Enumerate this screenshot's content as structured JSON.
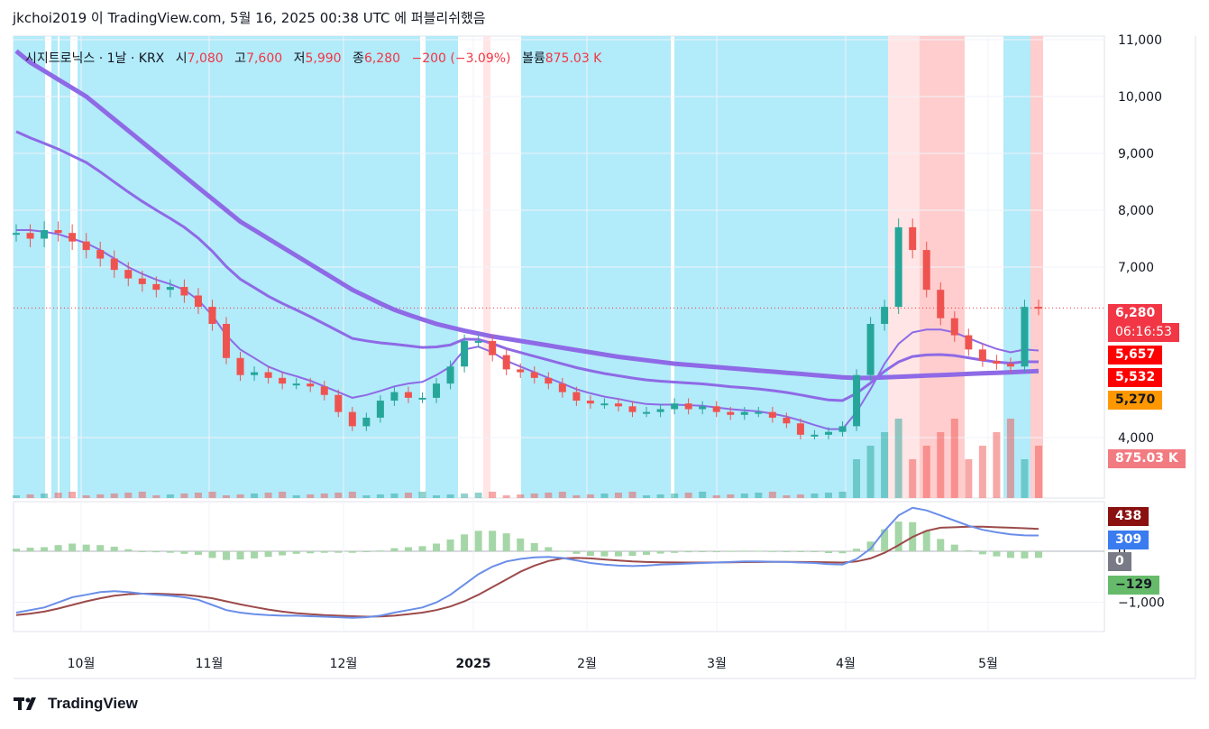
{
  "header": {
    "text": "jkchoi2019 이 TradingView.com, 5월 16, 2025 00:38 UTC 에 퍼블리쉬했음"
  },
  "legend": {
    "symbol": "시지트로닉스 · 1날 · KRX",
    "open_label": "시",
    "open": "7,080",
    "high_label": "고",
    "high": "7,600",
    "low_label": "저",
    "low": "5,990",
    "close_label": "종",
    "close": "6,280",
    "change": "−200 (−3.09%)",
    "volume_label": "볼륨",
    "volume": "875.03 K"
  },
  "price_badges": {
    "last_price": "6,280",
    "countdown": "06:16:53",
    "ma_red_1": "5,657",
    "ma_red_2": "5,532",
    "ma_orange": "5,270",
    "volume": "875.03 K"
  },
  "macd_badges": {
    "signal": "438",
    "macd": "309",
    "zero": "0",
    "histogram": "−129"
  },
  "footer": {
    "brand": "TradingView"
  },
  "colors": {
    "up": "#26a69a",
    "down": "#ef5350",
    "ma_purple": "#8e6ae6",
    "cyan_bg": "#b2ebf9",
    "pink_bg": "#ffe5e5",
    "red_bg": "#ffcdcd",
    "macd_line": "#6a8ee8",
    "signal_line": "#9c4a4a",
    "hist": "#a5d6a7"
  },
  "chart_data": {
    "type": "line",
    "title": "시지트로닉스 · 1날 · KRX",
    "x_ticks": [
      "10월",
      "11월",
      "12월",
      "2025",
      "2월",
      "3월",
      "4월",
      "5월"
    ],
    "y_ticks": [
      "4,000",
      "7,000",
      "8,000",
      "9,000",
      "10,000",
      "11,000"
    ],
    "macd_y_ticks": [
      "0",
      "−1,000"
    ],
    "ylim": [
      3000,
      11000
    ],
    "scale": "linear",
    "series": [
      {
        "kind": "close",
        "values": [
          7600,
          7500,
          7650,
          7600,
          7450,
          7300,
          7150,
          6950,
          6800,
          6700,
          6600,
          6650,
          6500,
          6300,
          6000,
          5400,
          5100,
          5150,
          5050,
          4950,
          4950,
          4900,
          4750,
          4450,
          4200,
          4350,
          4650,
          4800,
          4700,
          4700,
          4950,
          5250,
          5700,
          5700,
          5450,
          5200,
          5150,
          5050,
          4950,
          4800,
          4650,
          4600,
          4600,
          4550,
          4450,
          4450,
          4500,
          4600,
          4500,
          4550,
          4450,
          4400,
          4450,
          4450,
          4350,
          4250,
          4050,
          4050,
          4100,
          4200,
          5100,
          6000,
          6300,
          7700,
          7300,
          6600,
          6100,
          5800,
          5550,
          5350,
          5300,
          5250,
          6300,
          6280
        ]
      },
      {
        "kind": "ma_short",
        "values": [
          7650,
          7650,
          7620,
          7580,
          7500,
          7420,
          7300,
          7150,
          7000,
          6880,
          6780,
          6700,
          6600,
          6420,
          6150,
          5800,
          5550,
          5400,
          5250,
          5150,
          5080,
          5000,
          4900,
          4800,
          4700,
          4750,
          4820,
          4900,
          4950,
          4980,
          5100,
          5250,
          5550,
          5600,
          5500,
          5350,
          5250,
          5150,
          5050,
          4950,
          4850,
          4780,
          4720,
          4680,
          4630,
          4590,
          4580,
          4580,
          4570,
          4560,
          4530,
          4500,
          4480,
          4460,
          4420,
          4370,
          4300,
          4220,
          4150,
          4150,
          4450,
          4850,
          5300,
          5650,
          5850,
          5900,
          5900,
          5850,
          5750,
          5650,
          5560,
          5500,
          5550,
          5532
        ]
      },
      {
        "kind": "ma_long",
        "values": [
          10800,
          10600,
          10450,
          10300,
          10150,
          10000,
          9800,
          9600,
          9400,
          9200,
          9000,
          8800,
          8600,
          8400,
          8200,
          8000,
          7800,
          7650,
          7500,
          7350,
          7200,
          7050,
          6900,
          6750,
          6600,
          6480,
          6360,
          6250,
          6160,
          6080,
          6000,
          5940,
          5880,
          5830,
          5780,
          5740,
          5700,
          5660,
          5620,
          5580,
          5540,
          5500,
          5460,
          5420,
          5390,
          5360,
          5330,
          5300,
          5280,
          5260,
          5240,
          5220,
          5200,
          5180,
          5160,
          5140,
          5120,
          5100,
          5080,
          5060,
          5050,
          5050,
          5060,
          5070,
          5080,
          5090,
          5100,
          5110,
          5120,
          5130,
          5140,
          5150,
          5160,
          5170
        ]
      },
      {
        "kind": "macd_line",
        "values": [
          -1200,
          -1150,
          -1100,
          -1000,
          -900,
          -850,
          -800,
          -780,
          -800,
          -830,
          -850,
          -870,
          -900,
          -950,
          -1050,
          -1150,
          -1200,
          -1230,
          -1250,
          -1260,
          -1260,
          -1270,
          -1280,
          -1290,
          -1300,
          -1290,
          -1260,
          -1200,
          -1150,
          -1100,
          -1000,
          -850,
          -650,
          -450,
          -300,
          -200,
          -150,
          -120,
          -110,
          -130,
          -180,
          -230,
          -260,
          -280,
          -290,
          -280,
          -260,
          -250,
          -240,
          -230,
          -220,
          -210,
          -200,
          -200,
          -205,
          -210,
          -220,
          -230,
          -250,
          -260,
          -150,
          50,
          400,
          700,
          850,
          800,
          700,
          600,
          500,
          420,
          370,
          330,
          310,
          309
        ]
      },
      {
        "kind": "signal_line",
        "values": [
          -1250,
          -1220,
          -1180,
          -1120,
          -1050,
          -980,
          -920,
          -870,
          -840,
          -830,
          -830,
          -840,
          -850,
          -880,
          -920,
          -980,
          -1040,
          -1090,
          -1140,
          -1180,
          -1210,
          -1230,
          -1250,
          -1260,
          -1270,
          -1280,
          -1275,
          -1260,
          -1230,
          -1200,
          -1150,
          -1080,
          -980,
          -850,
          -700,
          -550,
          -400,
          -280,
          -190,
          -140,
          -130,
          -140,
          -160,
          -180,
          -200,
          -210,
          -215,
          -218,
          -220,
          -220,
          -218,
          -215,
          -212,
          -210,
          -208,
          -208,
          -210,
          -212,
          -215,
          -220,
          -200,
          -140,
          -30,
          120,
          280,
          400,
          460,
          470,
          480,
          480,
          470,
          460,
          450,
          438
        ]
      }
    ]
  }
}
